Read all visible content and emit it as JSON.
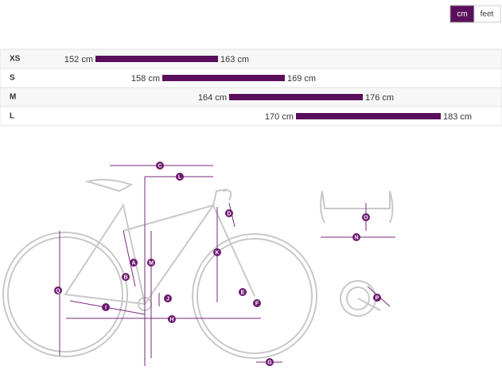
{
  "toggle": {
    "options": [
      "cm",
      "feet"
    ],
    "active": "cm"
  },
  "chart_data": {
    "type": "range",
    "categories": [
      "XS",
      "S",
      "M",
      "L"
    ],
    "low": {
      "values": [
        152,
        158,
        164,
        170
      ],
      "value_labels": [
        "152 cm",
        "158 cm",
        "164 cm",
        "170 cm"
      ]
    },
    "high": {
      "values": [
        163,
        169,
        176,
        183
      ],
      "value_labels": [
        "163 cm",
        "169 cm",
        "176 cm",
        "183 cm"
      ]
    },
    "color": "#5a0f5c"
  },
  "diagram": {
    "labels": [
      "C",
      "L",
      "D",
      "O",
      "N",
      "A",
      "M",
      "K",
      "B",
      "J",
      "E",
      "F",
      "I",
      "H",
      "P",
      "G",
      "Q"
    ]
  }
}
